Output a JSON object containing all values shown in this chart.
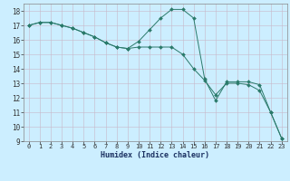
{
  "title": "",
  "xlabel": "Humidex (Indice chaleur)",
  "bg_color": "#cceeff",
  "grid_color": "#c8b8c8",
  "line_color": "#2a7a6a",
  "xlim": [
    -0.5,
    23.5
  ],
  "ylim": [
    9,
    18.5
  ],
  "xticks": [
    0,
    1,
    2,
    3,
    4,
    5,
    6,
    7,
    8,
    9,
    10,
    11,
    12,
    13,
    14,
    15,
    16,
    17,
    18,
    19,
    20,
    21,
    22,
    23
  ],
  "yticks": [
    9,
    10,
    11,
    12,
    13,
    14,
    15,
    16,
    17,
    18
  ],
  "line1_x": [
    0,
    1,
    2,
    3,
    4,
    5,
    6,
    7,
    8,
    9,
    10,
    11,
    12,
    13,
    14,
    15,
    16,
    17,
    18,
    19,
    20,
    21,
    22,
    23
  ],
  "line1_y": [
    17.0,
    17.2,
    17.2,
    17.0,
    16.8,
    16.5,
    16.2,
    15.8,
    15.5,
    15.4,
    15.5,
    15.5,
    15.5,
    15.5,
    15.0,
    14.0,
    13.2,
    12.2,
    13.0,
    13.0,
    12.9,
    12.5,
    11.0,
    9.2
  ],
  "line2_x": [
    0,
    1,
    2,
    3,
    4,
    5,
    6,
    7,
    8,
    9,
    10,
    11,
    12,
    13,
    14,
    15,
    16,
    17,
    18,
    19,
    20,
    21,
    22,
    23
  ],
  "line2_y": [
    17.0,
    17.2,
    17.2,
    17.0,
    16.8,
    16.5,
    16.2,
    15.8,
    15.5,
    15.4,
    15.9,
    16.7,
    17.5,
    18.1,
    18.1,
    17.5,
    13.3,
    11.8,
    13.1,
    13.1,
    13.1,
    12.9,
    11.0,
    9.2
  ],
  "xlabel_fontsize": 6,
  "tick_fontsize": 5
}
